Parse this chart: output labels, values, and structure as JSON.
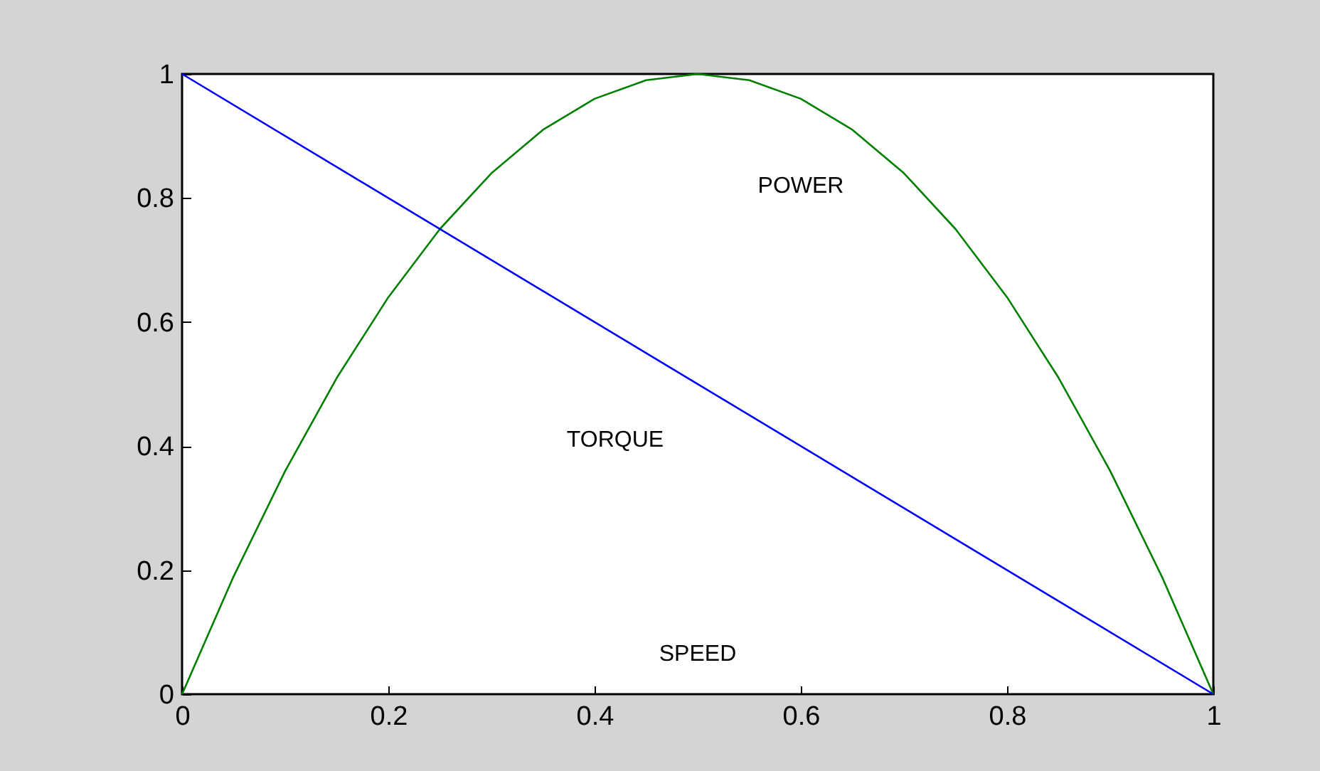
{
  "chart_data": {
    "type": "line",
    "x": [
      0,
      0.05,
      0.1,
      0.15,
      0.2,
      0.25,
      0.3,
      0.35,
      0.4,
      0.45,
      0.5,
      0.55,
      0.6,
      0.65,
      0.7,
      0.75,
      0.8,
      0.85,
      0.9,
      0.95,
      1
    ],
    "series": [
      {
        "name": "POWER",
        "color": "#008000",
        "values": [
          0,
          0.19,
          0.36,
          0.51,
          0.64,
          0.75,
          0.84,
          0.91,
          0.96,
          0.99,
          1,
          0.99,
          0.96,
          0.91,
          0.84,
          0.75,
          0.64,
          0.51,
          0.36,
          0.19,
          0
        ]
      },
      {
        "name": "TORQUE",
        "color": "#0000ff",
        "x": [
          0,
          1
        ],
        "values": [
          1,
          0
        ]
      }
    ],
    "annotations": [
      "SPEED"
    ],
    "xlim": [
      0,
      1
    ],
    "xticks": [
      0,
      0.2,
      0.4,
      0.6,
      0.8,
      1
    ],
    "ylim": [
      0,
      1
    ],
    "yticks": [
      0,
      0.2,
      0.4,
      0.6,
      0.8,
      1
    ],
    "grid": false,
    "marker": "none",
    "line_style": "solid"
  }
}
